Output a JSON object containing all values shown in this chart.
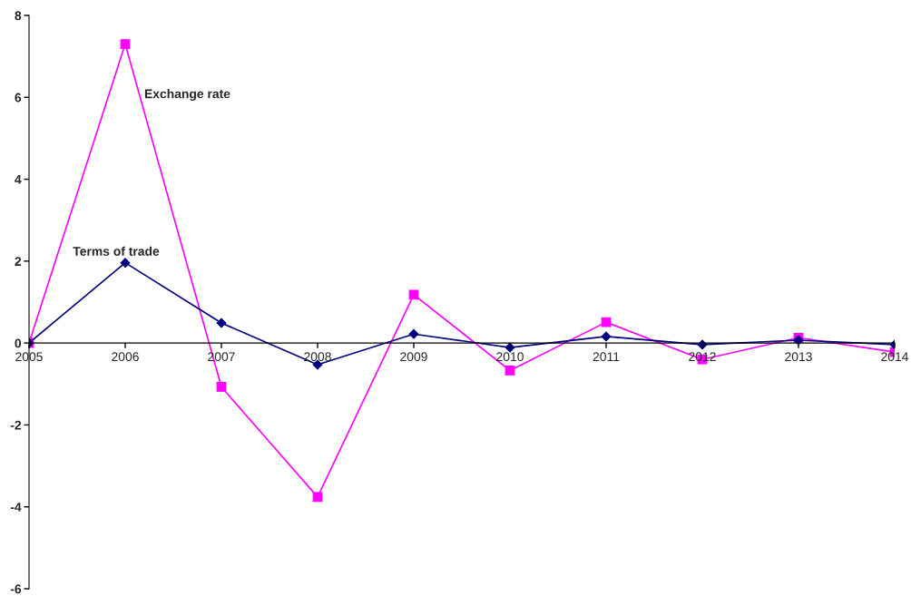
{
  "chart_data": {
    "type": "line",
    "x": [
      2005,
      2006,
      2007,
      2008,
      2009,
      2010,
      2011,
      2012,
      2013,
      2014
    ],
    "xlim": [
      2005,
      2014
    ],
    "xticks": [
      2005,
      2006,
      2007,
      2008,
      2009,
      2010,
      2011,
      2012,
      2013,
      2014
    ],
    "ylim": [
      -6,
      8
    ],
    "yticks": [
      -6,
      -4,
      -2,
      0,
      2,
      4,
      6,
      8
    ],
    "grid": false,
    "legend": false,
    "line_style": "solid",
    "series": [
      {
        "name": "Terms of trade",
        "color": "#000080",
        "marker": "diamond",
        "values": [
          0,
          1.96,
          0.49,
          -0.53,
          0.22,
          -0.11,
          0.16,
          -0.04,
          0.07,
          -0.04
        ]
      },
      {
        "name": "Exchange rate",
        "color": "#ff00ff",
        "marker": "square",
        "values": [
          0,
          7.3,
          -1.07,
          -3.76,
          1.18,
          -0.67,
          0.51,
          -0.4,
          0.13,
          -0.22
        ]
      }
    ]
  }
}
